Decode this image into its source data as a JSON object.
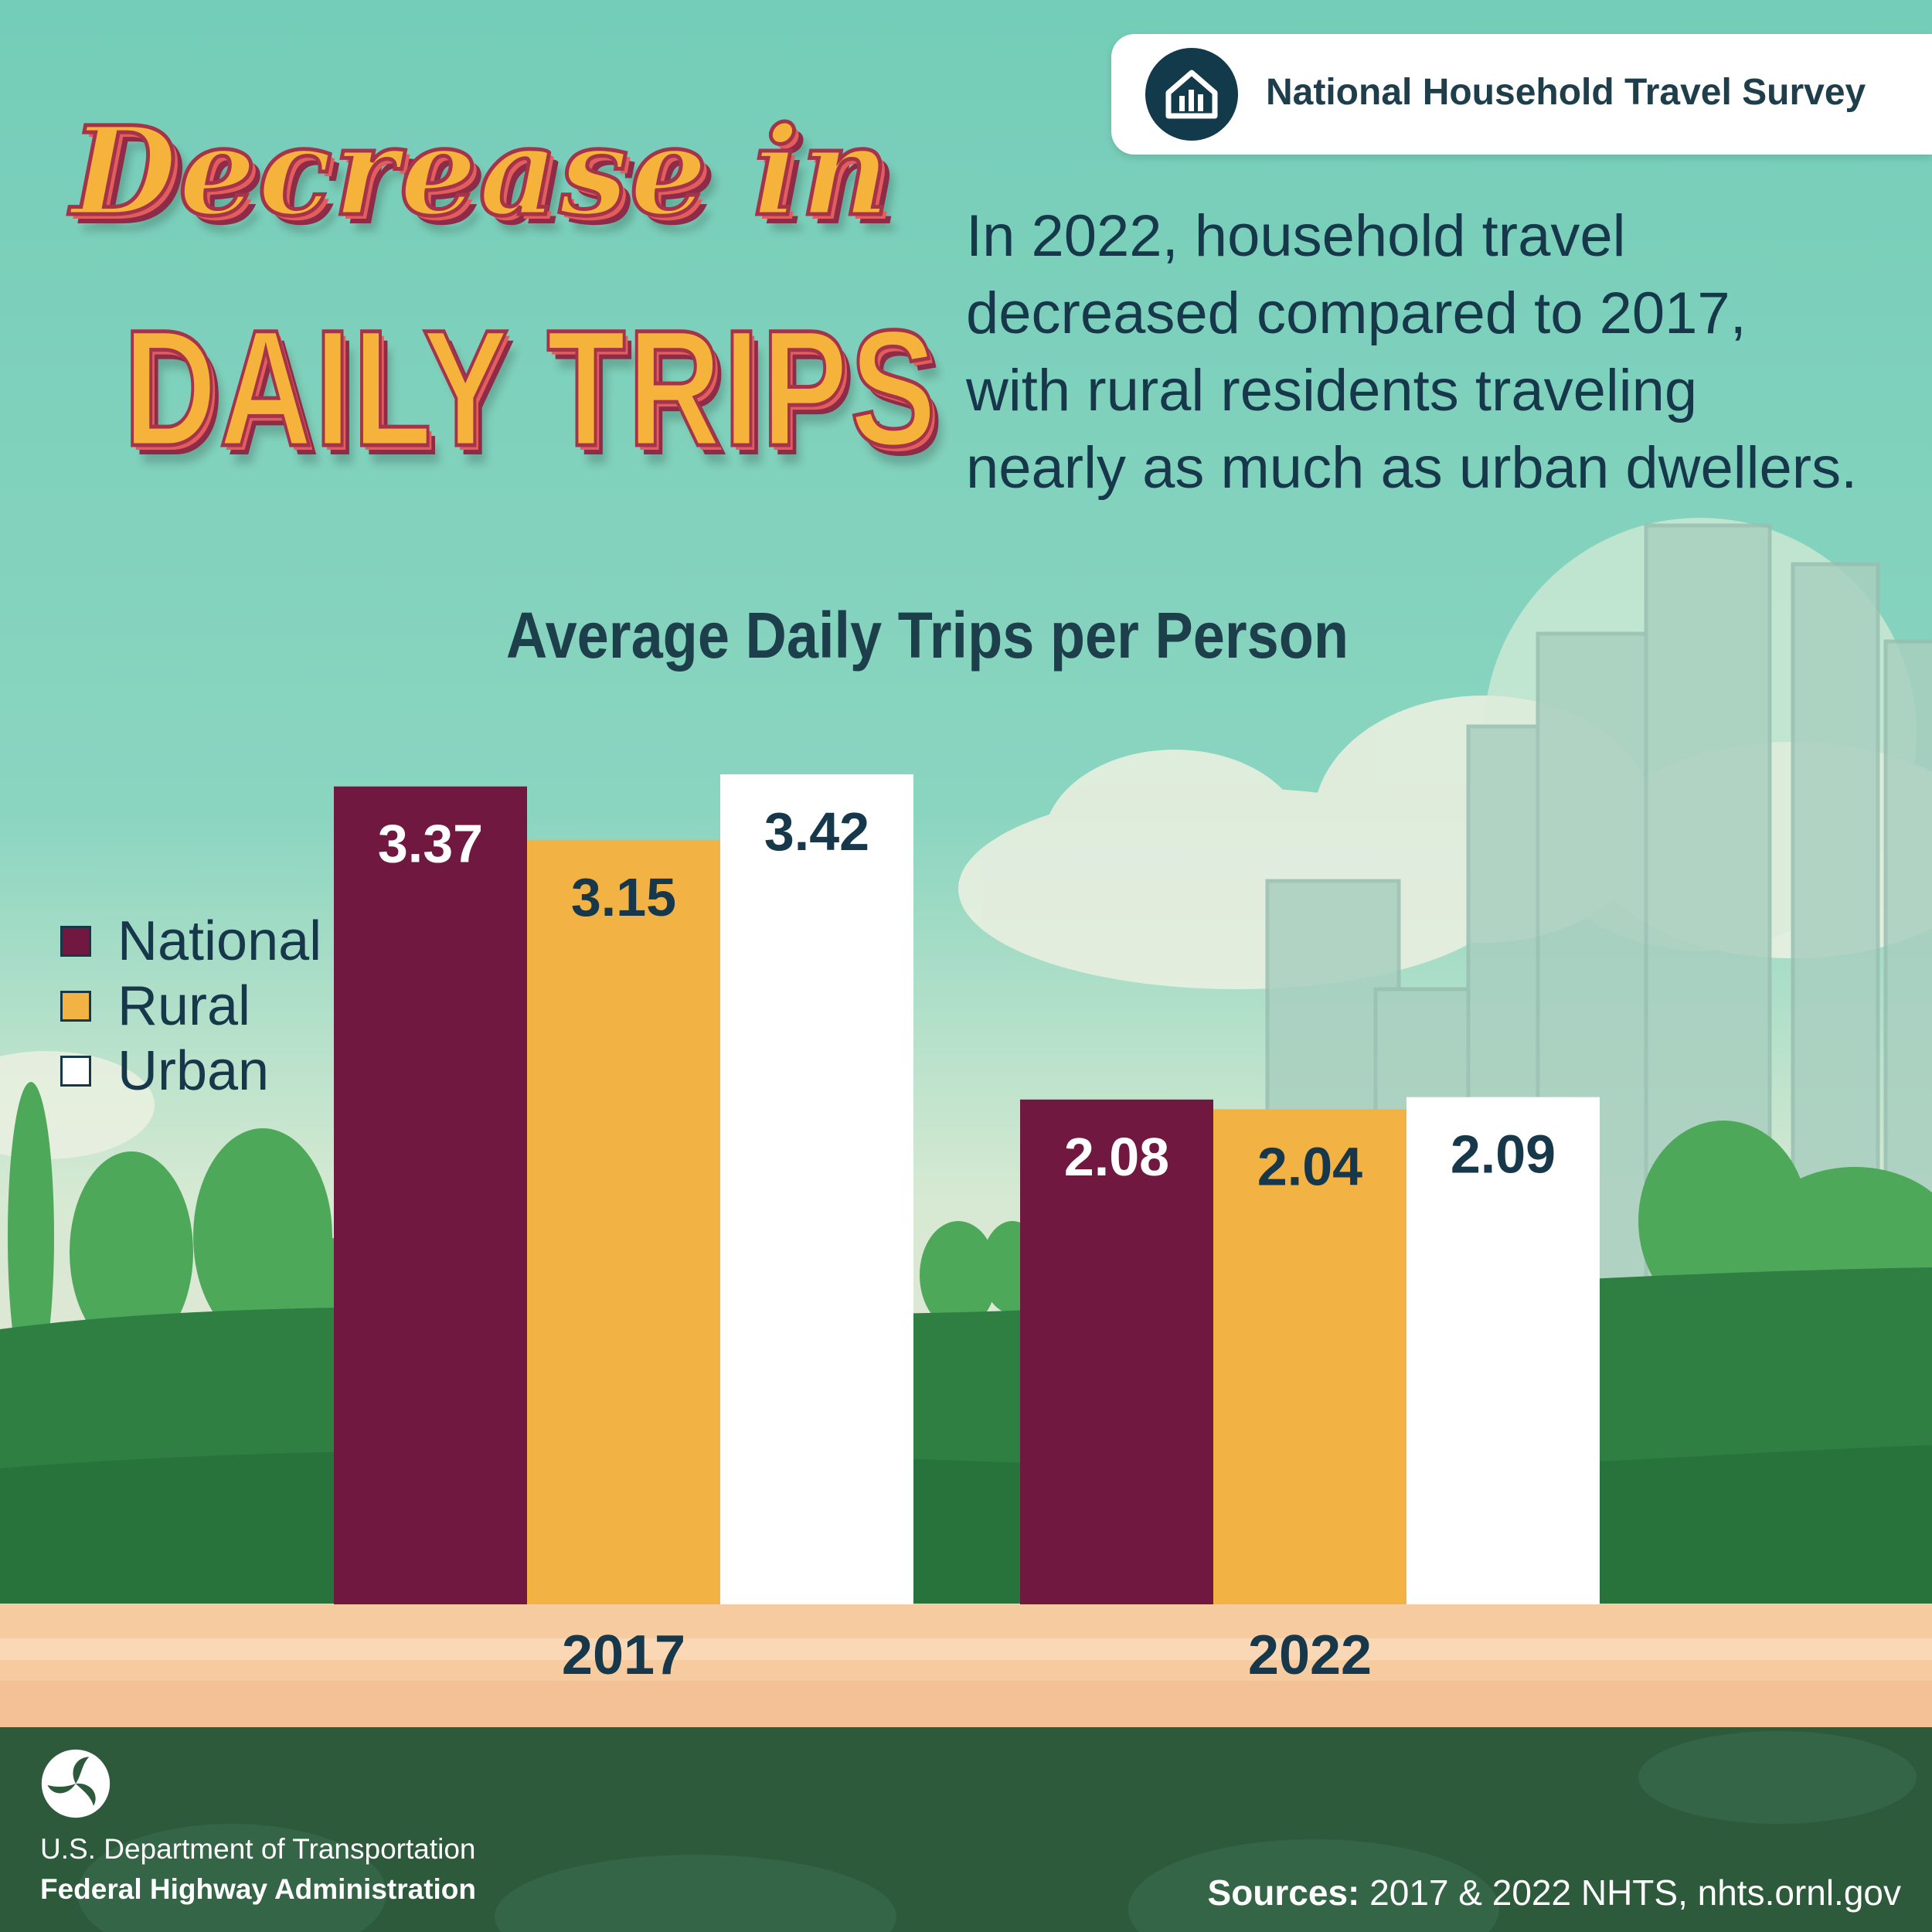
{
  "header": {
    "survey_name": "National Household Travel Survey",
    "logo_icon": "house-bar-chart-icon"
  },
  "headline": {
    "line1": "Decrease in",
    "line2": "DAILY TRIPS"
  },
  "intro_lines": [
    "In 2022, household travel",
    "decreased compared to 2017,",
    "with rural residents traveling",
    "nearly as much as urban dwellers."
  ],
  "chart_data": {
    "type": "bar",
    "title": "Average Daily Trips per Person",
    "categories": [
      "2017",
      "2022"
    ],
    "series": [
      {
        "name": "National",
        "values": [
          3.37,
          2.08
        ],
        "color": "#711841"
      },
      {
        "name": "Rural",
        "values": [
          3.15,
          2.04
        ],
        "color": "#f2b244"
      },
      {
        "name": "Urban",
        "values": [
          3.42,
          2.09
        ],
        "color": "#ffffff"
      }
    ],
    "ylim": [
      0,
      3.42
    ],
    "grid": false,
    "legend_position": "left"
  },
  "footer": {
    "agency_line1": "U.S. Department of Transportation",
    "agency_line2": "Federal Highway Administration",
    "agency_icon": "dot-triskelion-icon",
    "sources_label": "Sources:",
    "sources_text": "2017 & 2022 NHTS, nhts.ornl.gov"
  }
}
